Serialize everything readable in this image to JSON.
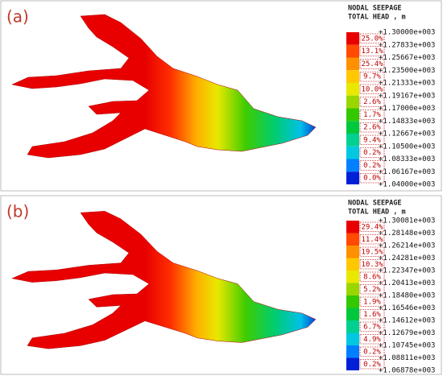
{
  "panels": [
    {
      "label": "(a)",
      "title": [
        "NODAL SEEPAGE",
        "TOTAL HEAD , m"
      ],
      "percents": [
        "25.0%",
        "13.1%",
        "25.4%",
        "9.7%",
        "10.0%",
        "2.6%",
        "1.7%",
        "2.6%",
        "9.4%",
        "0.2%",
        "0.2%",
        "0.0%"
      ],
      "values": [
        "+1.30000e+003",
        "+1.27833e+003",
        "+1.25667e+003",
        "+1.23500e+003",
        "+1.21333e+003",
        "+1.19167e+003",
        "+1.17000e+003",
        "+1.14833e+003",
        "+1.12667e+003",
        "+1.10500e+003",
        "+1.08333e+003",
        "+1.06167e+003",
        "+1.04000e+003"
      ]
    },
    {
      "label": "(b)",
      "title": [
        "NODAL SEEPAGE",
        "TOTAL HEAD , m"
      ],
      "percents": [
        "29.4%",
        "11.4%",
        "19.5%",
        "10.3%",
        "8.6%",
        "5.2%",
        "1.9%",
        "1.6%",
        "6.7%",
        "4.9%",
        "0.2%",
        "0.2%"
      ],
      "values": [
        "+1.30081e+003",
        "+1.28148e+003",
        "+1.26214e+003",
        "+1.24281e+003",
        "+1.22347e+003",
        "+1.20413e+003",
        "+1.18480e+003",
        "+1.16546e+003",
        "+1.14612e+003",
        "+1.12679e+003",
        "+1.10745e+003",
        "+1.08811e+003",
        "+1.06878e+003"
      ]
    }
  ],
  "colors": [
    "#e80000",
    "#ff4a00",
    "#ff9000",
    "#ffc800",
    "#e8e800",
    "#9ad600",
    "#34c800",
    "#00c83c",
    "#00d090",
    "#00c8e0",
    "#0080ff",
    "#0020d8"
  ]
}
